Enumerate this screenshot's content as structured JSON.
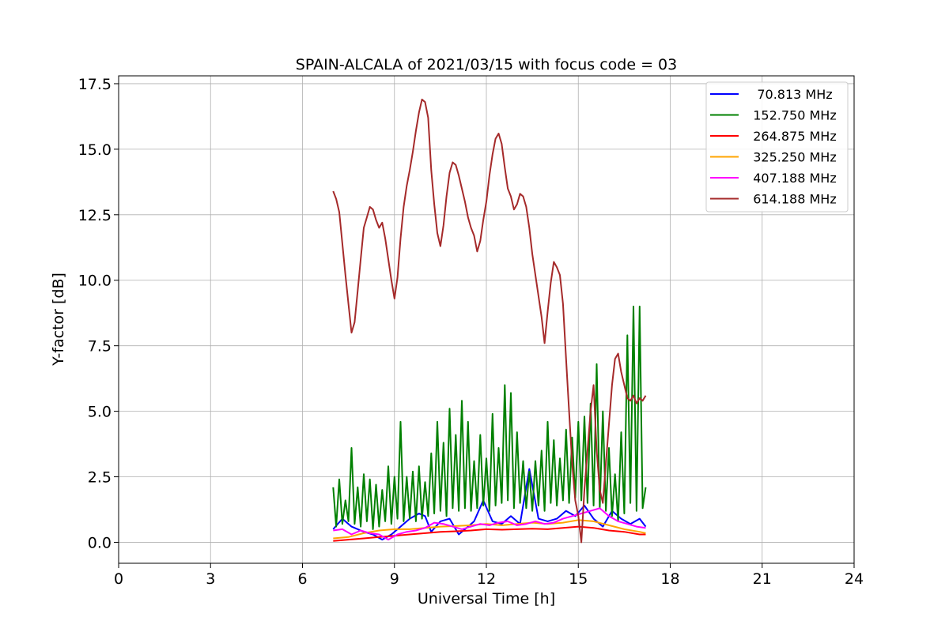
{
  "chart_data": {
    "type": "line",
    "title": "SPAIN-ALCALA of 2021/03/15 with focus code = 03",
    "xlabel": "Universal Time [h]",
    "ylabel": "Y-factor [dB]",
    "xlim": [
      0,
      24
    ],
    "ylim": [
      -0.8,
      17.8
    ],
    "xticks": [
      0,
      3,
      6,
      9,
      12,
      15,
      18,
      21,
      24
    ],
    "xtick_labels": [
      "0",
      "3",
      "6",
      "9",
      "12",
      "15",
      "18",
      "21",
      "24"
    ],
    "yticks": [
      0,
      2.5,
      5,
      7.5,
      10,
      12.5,
      15,
      17.5
    ],
    "ytick_labels": [
      "0.0",
      "2.5",
      "5.0",
      "7.5",
      "10.0",
      "12.5",
      "15.0",
      "17.5"
    ],
    "grid": true,
    "legend_position": "top-right",
    "series": [
      {
        "name": " 70.813 MHz",
        "color": "#0000ff",
        "x": [
          7.0,
          7.3,
          7.6,
          8.0,
          8.3,
          8.6,
          8.9,
          9.2,
          9.5,
          9.8,
          10.0,
          10.2,
          10.5,
          10.8,
          11.1,
          11.4,
          11.6,
          11.9,
          12.2,
          12.5,
          12.8,
          13.1,
          13.4,
          13.7,
          14.0,
          14.3,
          14.6,
          14.9,
          15.2,
          15.5,
          15.8,
          16.1,
          16.4,
          16.7,
          17.0,
          17.2
        ],
        "y": [
          0.5,
          0.9,
          0.6,
          0.4,
          0.3,
          0.1,
          0.3,
          0.6,
          0.9,
          1.1,
          1.0,
          0.4,
          0.8,
          0.9,
          0.3,
          0.6,
          0.8,
          1.6,
          0.8,
          0.7,
          1.0,
          0.7,
          2.8,
          0.9,
          0.8,
          0.9,
          1.2,
          1.0,
          1.4,
          0.9,
          0.6,
          1.2,
          0.9,
          0.7,
          0.9,
          0.6
        ]
      },
      {
        "name": "152.750 MHz",
        "color": "#008000",
        "x": [
          7.0,
          7.1,
          7.2,
          7.3,
          7.4,
          7.5,
          7.6,
          7.7,
          7.8,
          7.9,
          8.0,
          8.1,
          8.2,
          8.3,
          8.4,
          8.5,
          8.6,
          8.7,
          8.8,
          8.9,
          9.0,
          9.1,
          9.2,
          9.3,
          9.4,
          9.5,
          9.6,
          9.7,
          9.8,
          9.9,
          10.0,
          10.1,
          10.2,
          10.3,
          10.4,
          10.5,
          10.6,
          10.7,
          10.8,
          10.9,
          11.0,
          11.1,
          11.2,
          11.3,
          11.4,
          11.5,
          11.6,
          11.7,
          11.8,
          11.9,
          12.0,
          12.1,
          12.2,
          12.3,
          12.4,
          12.5,
          12.6,
          12.7,
          12.8,
          12.9,
          13.0,
          13.1,
          13.2,
          13.3,
          13.4,
          13.5,
          13.6,
          13.7,
          13.8,
          13.9,
          14.0,
          14.1,
          14.2,
          14.3,
          14.4,
          14.5,
          14.6,
          14.7,
          14.8,
          14.9,
          15.0,
          15.1,
          15.2,
          15.3,
          15.4,
          15.5,
          15.6,
          15.7,
          15.8,
          15.9,
          16.0,
          16.1,
          16.2,
          16.3,
          16.4,
          16.5,
          16.6,
          16.7,
          16.8,
          16.9,
          17.0,
          17.1,
          17.2
        ],
        "y": [
          2.1,
          0.6,
          2.4,
          0.7,
          1.6,
          0.8,
          3.6,
          0.7,
          2.1,
          0.6,
          2.6,
          0.8,
          2.4,
          0.5,
          2.2,
          0.6,
          2.0,
          0.8,
          2.9,
          0.7,
          2.5,
          0.9,
          4.6,
          0.8,
          2.5,
          0.9,
          2.7,
          0.8,
          2.9,
          0.9,
          2.3,
          1.0,
          3.4,
          1.1,
          4.6,
          1.2,
          3.8,
          1.0,
          5.1,
          1.3,
          4.1,
          1.2,
          5.4,
          1.3,
          4.6,
          1.2,
          3.1,
          1.3,
          4.1,
          1.4,
          3.2,
          1.2,
          4.9,
          1.4,
          3.6,
          1.5,
          6.0,
          1.6,
          5.7,
          1.3,
          4.2,
          1.5,
          3.1,
          1.3,
          2.7,
          1.2,
          3.1,
          1.4,
          3.5,
          1.2,
          4.6,
          1.5,
          3.9,
          1.4,
          3.2,
          1.6,
          4.3,
          1.5,
          4.0,
          1.7,
          4.6,
          1.6,
          4.8,
          1.5,
          5.3,
          1.4,
          6.8,
          1.3,
          5.0,
          1.2,
          3.6,
          1.0,
          2.6,
          0.8,
          4.2,
          1.1,
          7.9,
          1.5,
          9.0,
          1.2,
          9.0,
          1.3,
          2.1
        ]
      },
      {
        "name": "264.875 MHz",
        "color": "#ff0000",
        "x": [
          7.0,
          7.5,
          8.0,
          8.5,
          9.0,
          9.5,
          10.0,
          10.5,
          11.0,
          11.5,
          12.0,
          12.5,
          13.0,
          13.5,
          14.0,
          14.5,
          15.0,
          15.5,
          16.0,
          16.5,
          17.0,
          17.2
        ],
        "y": [
          0.05,
          0.1,
          0.15,
          0.2,
          0.25,
          0.3,
          0.35,
          0.4,
          0.42,
          0.45,
          0.5,
          0.48,
          0.5,
          0.52,
          0.5,
          0.55,
          0.6,
          0.55,
          0.45,
          0.4,
          0.3,
          0.3
        ]
      },
      {
        "name": "325.250 MHz",
        "color": "#ffa500",
        "x": [
          7.0,
          7.5,
          8.0,
          8.5,
          9.0,
          9.5,
          10.0,
          10.5,
          11.0,
          11.5,
          12.0,
          12.5,
          13.0,
          13.5,
          14.0,
          14.5,
          15.0,
          15.5,
          16.0,
          16.5,
          17.0,
          17.2
        ],
        "y": [
          0.15,
          0.2,
          0.35,
          0.45,
          0.5,
          0.5,
          0.55,
          0.6,
          0.62,
          0.65,
          0.7,
          0.65,
          0.7,
          0.75,
          0.7,
          0.75,
          0.85,
          0.8,
          0.65,
          0.5,
          0.4,
          0.35
        ]
      },
      {
        "name": "407.188 MHz",
        "color": "#ff00ff",
        "x": [
          7.0,
          7.3,
          7.6,
          7.9,
          8.2,
          8.5,
          8.8,
          9.1,
          9.4,
          9.7,
          10.0,
          10.3,
          10.6,
          10.9,
          11.2,
          11.5,
          11.8,
          12.1,
          12.4,
          12.7,
          13.0,
          13.3,
          13.6,
          13.9,
          14.2,
          14.5,
          14.8,
          15.1,
          15.4,
          15.7,
          16.0,
          16.3,
          16.6,
          16.9,
          17.2
        ],
        "y": [
          0.45,
          0.5,
          0.3,
          0.45,
          0.35,
          0.3,
          0.1,
          0.3,
          0.4,
          0.45,
          0.55,
          0.75,
          0.7,
          0.6,
          0.5,
          0.6,
          0.7,
          0.65,
          0.75,
          0.8,
          0.65,
          0.7,
          0.8,
          0.7,
          0.75,
          0.9,
          1.0,
          1.1,
          1.2,
          1.3,
          1.0,
          0.8,
          0.7,
          0.6,
          0.55
        ]
      },
      {
        "name": "614.188 MHz",
        "color": "#a52a2a",
        "x": [
          7.0,
          7.1,
          7.2,
          7.3,
          7.4,
          7.5,
          7.6,
          7.7,
          7.8,
          7.9,
          8.0,
          8.1,
          8.2,
          8.3,
          8.4,
          8.5,
          8.6,
          8.7,
          8.8,
          8.9,
          9.0,
          9.1,
          9.2,
          9.3,
          9.4,
          9.5,
          9.6,
          9.7,
          9.8,
          9.9,
          10.0,
          10.1,
          10.2,
          10.3,
          10.4,
          10.5,
          10.6,
          10.7,
          10.8,
          10.9,
          11.0,
          11.1,
          11.2,
          11.3,
          11.4,
          11.5,
          11.6,
          11.7,
          11.8,
          11.9,
          12.0,
          12.1,
          12.2,
          12.3,
          12.4,
          12.5,
          12.6,
          12.7,
          12.8,
          12.9,
          13.0,
          13.1,
          13.2,
          13.3,
          13.4,
          13.5,
          13.6,
          13.7,
          13.8,
          13.9,
          14.0,
          14.1,
          14.2,
          14.3,
          14.4,
          14.5,
          14.6,
          14.7,
          14.8,
          14.9,
          15.0,
          15.1,
          15.2,
          15.3,
          15.4,
          15.5,
          15.6,
          15.7,
          15.8,
          15.9,
          16.0,
          16.1,
          16.2,
          16.3,
          16.4,
          16.5,
          16.6,
          16.7,
          16.8,
          16.9,
          17.0,
          17.1,
          17.2
        ],
        "y": [
          13.4,
          13.1,
          12.6,
          11.4,
          10.2,
          9.1,
          8.0,
          8.4,
          9.6,
          10.8,
          12.0,
          12.4,
          12.8,
          12.7,
          12.3,
          12.0,
          12.2,
          11.6,
          10.8,
          10.0,
          9.3,
          10.1,
          11.6,
          12.8,
          13.6,
          14.2,
          14.9,
          15.7,
          16.4,
          16.9,
          16.8,
          16.2,
          14.2,
          12.9,
          11.8,
          11.3,
          12.1,
          13.2,
          14.1,
          14.5,
          14.4,
          14.0,
          13.5,
          13.0,
          12.4,
          12.0,
          11.7,
          11.1,
          11.5,
          12.3,
          13.0,
          14.0,
          14.8,
          15.4,
          15.6,
          15.2,
          14.3,
          13.5,
          13.2,
          12.7,
          12.9,
          13.3,
          13.2,
          12.8,
          12.0,
          11.0,
          10.2,
          9.4,
          8.6,
          7.6,
          8.8,
          9.9,
          10.7,
          10.5,
          10.2,
          9.1,
          7.0,
          5.0,
          3.0,
          1.6,
          1.0,
          0.0,
          2.0,
          3.5,
          5.0,
          6.0,
          3.5,
          2.0,
          1.5,
          3.0,
          4.5,
          6.0,
          7.0,
          7.2,
          6.5,
          6.0,
          5.5,
          5.4,
          5.6,
          5.3,
          5.5,
          5.4,
          5.6
        ]
      }
    ]
  }
}
